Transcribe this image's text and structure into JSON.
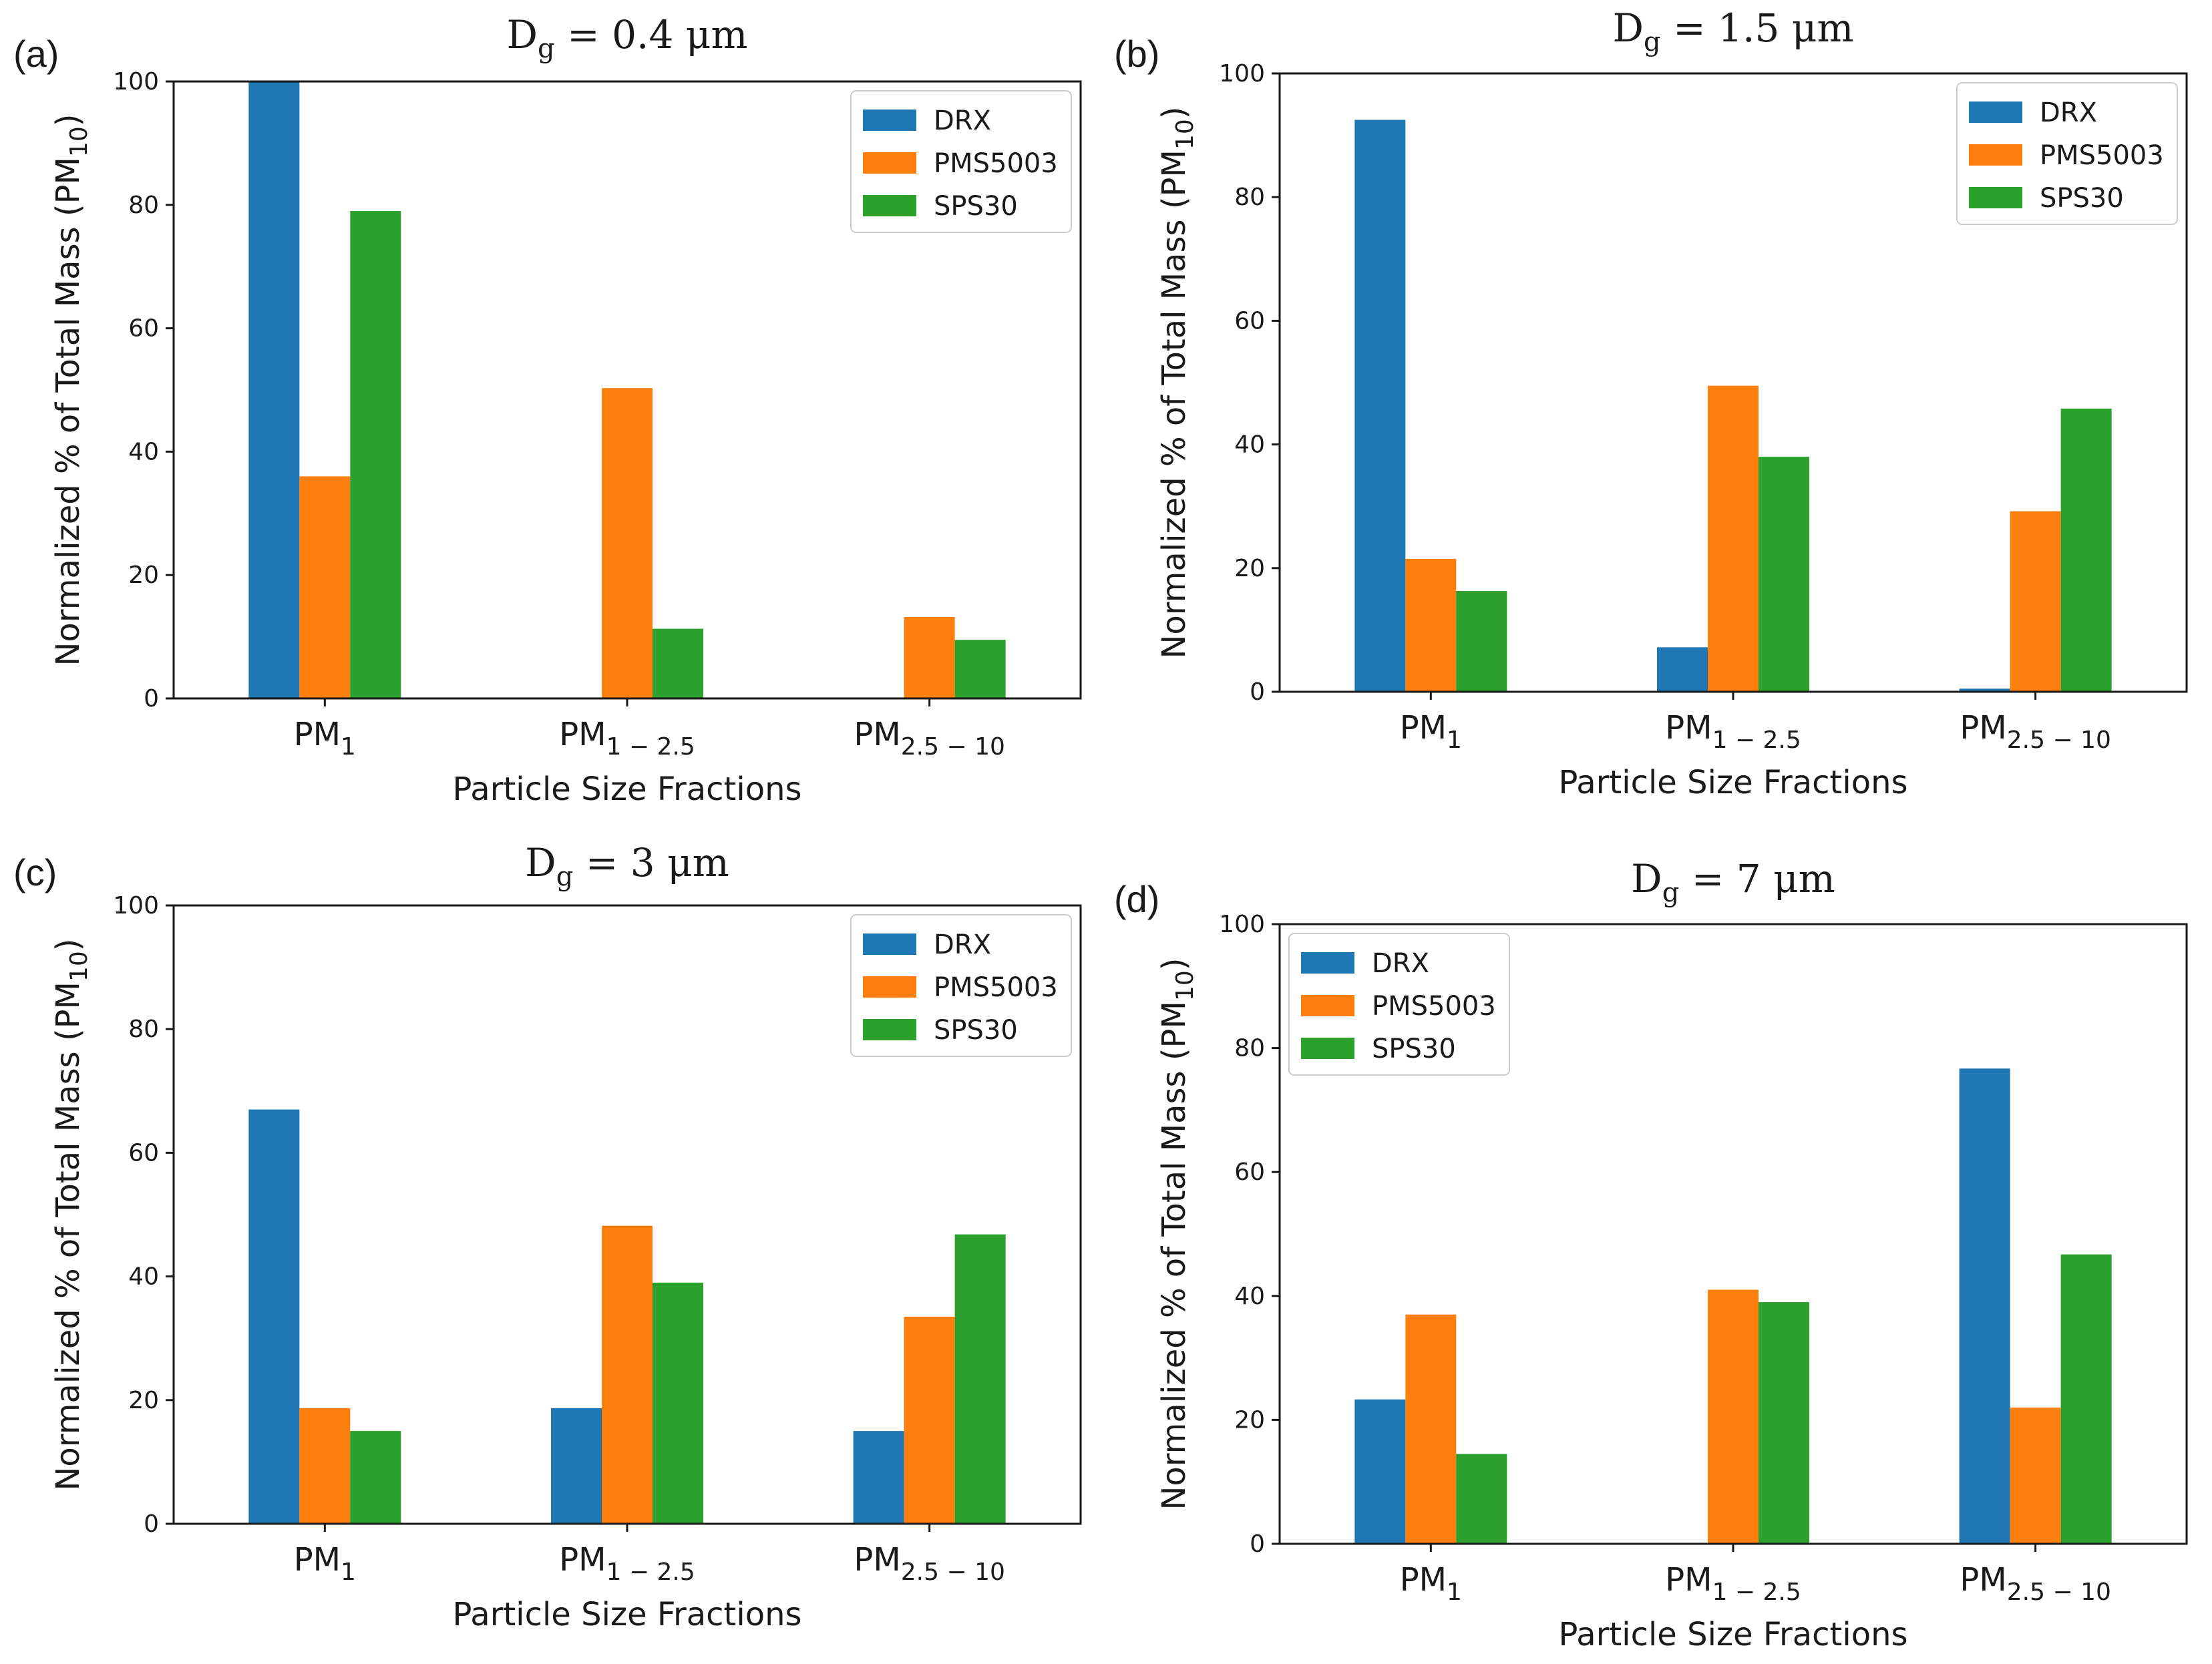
{
  "figure": {
    "background": "#ffffff"
  },
  "series_colors": {
    "DRX": "#1f77b4",
    "PMS5003": "#ff7f0e",
    "SPS30": "#2ca02c"
  },
  "chart_data": [
    {
      "panel": "(a)",
      "type": "bar",
      "title_main": "D",
      "title_sub": "g",
      "title_value": " = 0.4 μm",
      "ylabel_main": "Normalized % of Total Mass (PM",
      "ylabel_sub": "10",
      "ylabel_end": ")",
      "xlabel": "Particle Size Fractions",
      "categories": [
        {
          "main": "PM",
          "sub": "1"
        },
        {
          "main": "PM",
          "sub": "1 − 2.5"
        },
        {
          "main": "PM",
          "sub": "2.5 − 10"
        }
      ],
      "ylim": [
        0,
        100
      ],
      "yticks": [
        "0",
        "20",
        "40",
        "60",
        "80",
        "100"
      ],
      "legend_position": "top-right",
      "series": [
        {
          "name": "DRX",
          "values": [
            100,
            0,
            0
          ]
        },
        {
          "name": "PMS5003",
          "values": [
            36,
            50.3,
            13.2
          ]
        },
        {
          "name": "SPS30",
          "values": [
            79,
            11.3,
            9.5
          ]
        }
      ]
    },
    {
      "panel": "(b)",
      "type": "bar",
      "title_main": "D",
      "title_sub": "g",
      "title_value": " = 1.5 μm",
      "ylabel_main": "Normalized % of Total Mass (PM",
      "ylabel_sub": "10",
      "ylabel_end": ")",
      "xlabel": "Particle Size Fractions",
      "categories": [
        {
          "main": "PM",
          "sub": "1"
        },
        {
          "main": "PM",
          "sub": "1 − 2.5"
        },
        {
          "main": "PM",
          "sub": "2.5 − 10"
        }
      ],
      "ylim": [
        0,
        100
      ],
      "yticks": [
        "0",
        "20",
        "40",
        "60",
        "80",
        "100"
      ],
      "legend_position": "top-right",
      "series": [
        {
          "name": "DRX",
          "values": [
            92.5,
            7.2,
            0.5
          ]
        },
        {
          "name": "PMS5003",
          "values": [
            21.5,
            49.5,
            29.2
          ]
        },
        {
          "name": "SPS30",
          "values": [
            16.3,
            38.0,
            45.8
          ]
        }
      ]
    },
    {
      "panel": "(c)",
      "type": "bar",
      "title_main": "D",
      "title_sub": "g",
      "title_value": " = 3 μm",
      "ylabel_main": "Normalized % of Total Mass (PM",
      "ylabel_sub": "10",
      "ylabel_end": ")",
      "xlabel": "Particle Size Fractions",
      "categories": [
        {
          "main": "PM",
          "sub": "1"
        },
        {
          "main": "PM",
          "sub": "1 − 2.5"
        },
        {
          "main": "PM",
          "sub": "2.5 − 10"
        }
      ],
      "ylim": [
        0,
        100
      ],
      "yticks": [
        "0",
        "20",
        "40",
        "60",
        "80",
        "100"
      ],
      "legend_position": "top-right",
      "series": [
        {
          "name": "DRX",
          "values": [
            67,
            18.7,
            15
          ]
        },
        {
          "name": "PMS5003",
          "values": [
            18.7,
            48.2,
            33.5
          ]
        },
        {
          "name": "SPS30",
          "values": [
            15,
            39,
            46.8
          ]
        }
      ]
    },
    {
      "panel": "(d)",
      "type": "bar",
      "title_main": "D",
      "title_sub": "g",
      "title_value": " = 7 μm",
      "ylabel_main": "Normalized % of Total Mass (PM",
      "ylabel_sub": "10",
      "ylabel_end": ")",
      "xlabel": "Particle Size Fractions",
      "categories": [
        {
          "main": "PM",
          "sub": "1"
        },
        {
          "main": "PM",
          "sub": "1 − 2.5"
        },
        {
          "main": "PM",
          "sub": "2.5 − 10"
        }
      ],
      "ylim": [
        0,
        100
      ],
      "yticks": [
        "0",
        "20",
        "40",
        "60",
        "80",
        "100"
      ],
      "legend_position": "top-left",
      "series": [
        {
          "name": "DRX",
          "values": [
            23.3,
            0,
            76.7
          ]
        },
        {
          "name": "PMS5003",
          "values": [
            37,
            41,
            22
          ]
        },
        {
          "name": "SPS30",
          "values": [
            14.5,
            39,
            46.7
          ]
        }
      ]
    }
  ]
}
